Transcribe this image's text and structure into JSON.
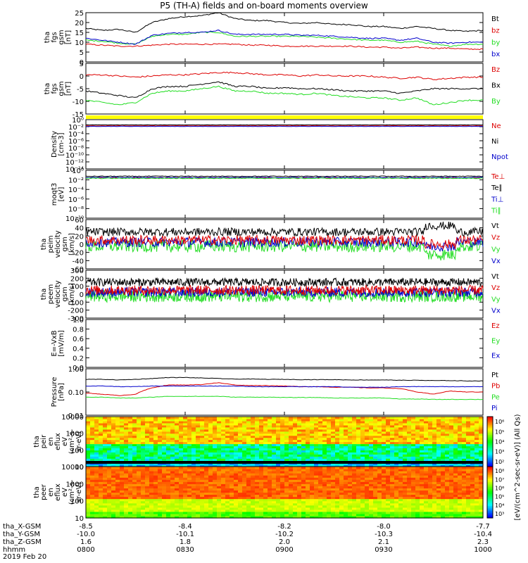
{
  "title": "P5 (TH-A) fields and on-board moments overview",
  "colors": {
    "black": "#000000",
    "red": "#dd0000",
    "green": "#22dd22",
    "blue": "#0000cc",
    "yellow": "#ffff00"
  },
  "chart_data": [
    {
      "type": "line",
      "id": "fgs_mag",
      "ylabel": [
        "tha",
        "fgs",
        "gsm",
        "[nT]"
      ],
      "ylim": [
        0,
        25
      ],
      "yticks": [
        "0",
        "5",
        "10",
        "15",
        "20",
        "25"
      ],
      "series": [
        {
          "name": "Bt",
          "color": "#000000",
          "values": [
            17,
            16,
            16.5,
            15,
            20,
            22,
            23,
            23.5,
            25,
            22,
            21,
            21,
            20,
            19.5,
            20,
            19,
            19,
            18,
            18,
            17,
            18,
            17,
            16,
            15.5,
            16
          ]
        },
        {
          "name": "bz",
          "color": "#dd0000",
          "values": [
            9,
            8.5,
            8,
            8,
            8.5,
            9,
            9,
            9,
            9,
            9,
            8.5,
            8.5,
            8,
            8,
            8,
            8,
            8,
            7.5,
            7.5,
            7,
            7.5,
            7,
            7,
            6.5,
            6.5
          ]
        },
        {
          "name": "by",
          "color": "#22dd22",
          "values": [
            11,
            10.5,
            9.5,
            9,
            13,
            14,
            14,
            15,
            15,
            13,
            13,
            13,
            13,
            13,
            12.5,
            12,
            11.5,
            11,
            11,
            10,
            10.5,
            9,
            8,
            9,
            9
          ]
        },
        {
          "name": "bx",
          "color": "#0000cc",
          "values": [
            12,
            11,
            10,
            9,
            13.5,
            14.5,
            15,
            15,
            16,
            14,
            14,
            14,
            14,
            13.5,
            13.5,
            13,
            12.5,
            12,
            12,
            11,
            12,
            10,
            9.5,
            10,
            10
          ]
        }
      ]
    },
    {
      "type": "line",
      "id": "fgs_comp",
      "ylabel": [
        "tha",
        "fgs",
        "gsm",
        "[nT]"
      ],
      "ylim": [
        -17,
        5
      ],
      "yticks": [
        "-15",
        "-10",
        "-5",
        "0",
        "5"
      ],
      "series": [
        {
          "name": "Bz",
          "color": "#dd0000",
          "values": [
            0,
            0,
            -0.5,
            -1,
            -0.5,
            0,
            0,
            0.5,
            1,
            1,
            0.5,
            0,
            0,
            -0.5,
            0,
            -0.5,
            -0.5,
            -0.5,
            -1,
            -1.5,
            -1,
            -2,
            -1.5,
            -1,
            -1
          ]
        },
        {
          "name": "Bx",
          "color": "#000000",
          "values": [
            -7,
            -8,
            -9,
            -10,
            -6,
            -5,
            -5,
            -4,
            -3,
            -5,
            -5,
            -6,
            -5.5,
            -6,
            -6,
            -6.5,
            -7,
            -7,
            -7,
            -8,
            -7,
            -6,
            -6,
            -6,
            -6
          ]
        },
        {
          "name": "By",
          "color": "#22dd22",
          "values": [
            -11,
            -12,
            -13,
            -12,
            -8,
            -7,
            -7,
            -6,
            -5,
            -7,
            -7,
            -8,
            -8,
            -8.5,
            -8,
            -9,
            -9.5,
            -10,
            -10,
            -11,
            -10,
            -13,
            -12,
            -11,
            -11
          ]
        }
      ]
    },
    {
      "type": "line",
      "id": "density",
      "ylabel": [
        "Density",
        "[cm-3]"
      ],
      "ylim": [
        -14,
        2
      ],
      "yticks": [
        "10⁻¹⁴",
        "10⁻¹²",
        "10⁻¹⁰",
        "10⁻⁸",
        "10⁻⁶",
        "10⁻⁴",
        "10⁻²",
        "10⁰"
      ],
      "series": [
        {
          "name": "Ne",
          "color": "#dd0000"
        },
        {
          "name": "Ni",
          "color": "#000000"
        },
        {
          "name": "Npot",
          "color": "#0000cc"
        }
      ]
    },
    {
      "type": "line",
      "id": "temp",
      "ylabel": [
        "moqt3",
        "[eV]"
      ],
      "ylim": [
        -10,
        2
      ],
      "yticks": [
        "10⁻¹⁰",
        "10⁻⁸",
        "10⁻⁶",
        "10⁻⁴",
        "10⁻²",
        "10⁰"
      ],
      "series": [
        {
          "name": "Te⊥",
          "color": "#dd0000"
        },
        {
          "name": "Te∥",
          "color": "#000000"
        },
        {
          "name": "Ti⊥",
          "color": "#0000cc"
        },
        {
          "name": "Ti∥",
          "color": "#22dd22"
        }
      ]
    },
    {
      "type": "line",
      "id": "peim_vel",
      "ylabel": [
        "tha",
        "peim",
        "velocity",
        "gsm",
        "[km/s]"
      ],
      "ylim": [
        -60,
        60
      ],
      "yticks": [
        "-60",
        "-40",
        "-20",
        "0",
        "20",
        "40",
        "60"
      ],
      "series": [
        {
          "name": "Vt",
          "color": "#000000"
        },
        {
          "name": "Vz",
          "color": "#dd0000"
        },
        {
          "name": "Vy",
          "color": "#22dd22"
        },
        {
          "name": "Vx",
          "color": "#0000cc"
        }
      ]
    },
    {
      "type": "line",
      "id": "peem_vel",
      "ylabel": [
        "tha",
        "peem",
        "velocity",
        "gsm",
        "[km/s]"
      ],
      "ylim": [
        -300,
        300
      ],
      "yticks": [
        "-300",
        "-200",
        "-100",
        "0",
        "100",
        "200",
        "300"
      ],
      "series": [
        {
          "name": "Vt",
          "color": "#000000"
        },
        {
          "name": "Vz",
          "color": "#dd0000"
        },
        {
          "name": "Vy",
          "color": "#22dd22"
        },
        {
          "name": "Vx",
          "color": "#0000cc"
        }
      ]
    },
    {
      "type": "line",
      "id": "efield",
      "ylabel": [
        "E=-VxB",
        "[mV/m]"
      ],
      "ylim": [
        0,
        1
      ],
      "yticks": [
        "0.0",
        "0.2",
        "0.4",
        "0.6",
        "0.8",
        "1.0"
      ],
      "series": [
        {
          "name": "Ez",
          "color": "#dd0000"
        },
        {
          "name": "Ey",
          "color": "#22dd22"
        },
        {
          "name": "Ex",
          "color": "#0000cc"
        }
      ]
    },
    {
      "type": "line",
      "id": "pressure",
      "ylabel": [
        "Pressure",
        "[nPa]"
      ],
      "ylog": true,
      "ylim": [
        0.01,
        1
      ],
      "yticks": [
        "0.01",
        "0.10",
        "1.00"
      ],
      "series": [
        {
          "name": "Pt",
          "color": "#000000",
          "values": [
            0.35,
            0.35,
            0.33,
            0.35,
            0.38,
            0.42,
            0.42,
            0.4,
            0.38,
            0.36,
            0.36,
            0.35,
            0.35,
            0.34,
            0.34,
            0.34,
            0.33,
            0.33,
            0.33,
            0.32,
            0.32,
            0.31,
            0.31,
            0.3,
            0.3
          ]
        },
        {
          "name": "Pb",
          "color": "#dd0000",
          "values": [
            0.09,
            0.08,
            0.07,
            0.08,
            0.15,
            0.2,
            0.2,
            0.21,
            0.25,
            0.2,
            0.19,
            0.19,
            0.18,
            0.17,
            0.17,
            0.16,
            0.16,
            0.15,
            0.15,
            0.14,
            0.1,
            0.08,
            0.11,
            0.1,
            0.1
          ]
        },
        {
          "name": "Pe",
          "color": "#22dd22",
          "values": [
            0.06,
            0.06,
            0.055,
            0.055,
            0.06,
            0.065,
            0.065,
            0.065,
            0.065,
            0.06,
            0.06,
            0.06,
            0.058,
            0.058,
            0.058,
            0.055,
            0.055,
            0.055,
            0.055,
            0.05,
            0.05,
            0.048,
            0.048,
            0.048,
            0.048
          ]
        },
        {
          "name": "Pi",
          "color": "#0000cc",
          "values": [
            0.18,
            0.18,
            0.17,
            0.17,
            0.18,
            0.18,
            0.18,
            0.18,
            0.18,
            0.18,
            0.17,
            0.17,
            0.17,
            0.17,
            0.17,
            0.17,
            0.16,
            0.16,
            0.16,
            0.17,
            0.17,
            0.17,
            0.17,
            0.17,
            0.17
          ]
        }
      ]
    },
    {
      "type": "heatmap",
      "id": "peir_spec",
      "ylabel": [
        "tha",
        "peir",
        "en",
        "eflux",
        "eV",
        "(cm²-s-",
        "sr-eV)"
      ],
      "ylog": true,
      "ylim": [
        5,
        20000
      ],
      "yticks": [
        "10",
        "100",
        "1000",
        "10000"
      ]
    },
    {
      "type": "heatmap",
      "id": "peer_spec",
      "ylabel": [
        "tha",
        "peer",
        "en",
        "eflux",
        "eV",
        "(cm²-s-",
        "sr-eV)"
      ],
      "ylog": true,
      "ylim": [
        5,
        20000
      ],
      "yticks": [
        "10",
        "100",
        "1000",
        "10000"
      ]
    }
  ],
  "colorbar": {
    "label": "[eV/(cm^2-sec-sr-eV)] (All Qs)",
    "ticks1": [
      "10²",
      "10³",
      "10⁴",
      "10⁵",
      "10⁶"
    ],
    "ticks2": [
      "10³",
      "10⁴",
      "10⁵",
      "10⁶",
      "10⁷",
      "10⁸"
    ]
  },
  "xaxis": {
    "rows": [
      {
        "label": "tha_X-GSM",
        "values": [
          "-8.5",
          "-8.4",
          "-8.2",
          "-8.0",
          "-7.7"
        ]
      },
      {
        "label": "tha_Y-GSM",
        "values": [
          "-10.0",
          "-10.1",
          "-10.2",
          "-10.3",
          "-10.4"
        ]
      },
      {
        "label": "tha_Z-GSM",
        "values": [
          "1.6",
          "1.8",
          "2.0",
          "2.1",
          "2.3"
        ]
      },
      {
        "label": "hhmm",
        "values": [
          "0800",
          "0830",
          "0900",
          "0930",
          "1000"
        ]
      }
    ],
    "date": "2019 Feb 20"
  }
}
